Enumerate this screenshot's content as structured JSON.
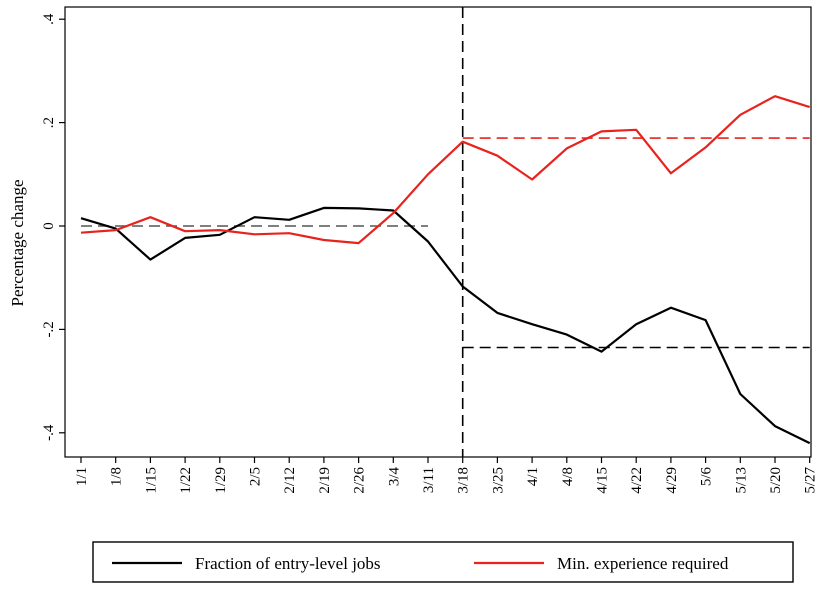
{
  "chart_data": {
    "type": "line",
    "title": "",
    "xlabel": "",
    "ylabel": "Percentage change",
    "ylim": [
      -0.43,
      0.43
    ],
    "yticks": [
      {
        "value": 0.4,
        "label": ".4"
      },
      {
        "value": 0.2,
        "label": ".2"
      },
      {
        "value": 0,
        "label": "0"
      },
      {
        "value": -0.2,
        "label": "-.2"
      },
      {
        "value": -0.4,
        "label": "-.4"
      }
    ],
    "categories": [
      "1/1",
      "1/8",
      "1/15",
      "1/22",
      "1/29",
      "2/5",
      "2/12",
      "2/19",
      "2/26",
      "3/4",
      "3/11",
      "3/18",
      "3/25",
      "4/1",
      "4/8",
      "4/15",
      "4/22",
      "4/29",
      "5/6",
      "5/13",
      "5/20",
      "5/27"
    ],
    "series": [
      {
        "name": "Fraction of entry-level jobs",
        "color": "#000000",
        "values": [
          0.015,
          -0.005,
          -0.065,
          -0.023,
          -0.017,
          0.017,
          0.012,
          0.035,
          0.034,
          0.03,
          -0.03,
          -0.117,
          -0.168,
          -0.19,
          -0.21,
          -0.243,
          -0.19,
          -0.158,
          -0.182,
          -0.325,
          -0.387,
          -0.42
        ]
      },
      {
        "name": "Min. experience required",
        "color": "#e8231e",
        "values": [
          -0.013,
          -0.008,
          0.017,
          -0.01,
          -0.008,
          -0.016,
          -0.014,
          -0.027,
          -0.033,
          0.025,
          0.1,
          0.163,
          0.136,
          0.09,
          0.15,
          0.183,
          0.186,
          0.102,
          0.152,
          0.215,
          0.251,
          0.23
        ]
      }
    ],
    "reference_lines": [
      {
        "kind": "horizontal",
        "value": 0,
        "from": "1/1",
        "to": "3/11",
        "color": "#555555",
        "style": "dashed"
      },
      {
        "kind": "horizontal",
        "value": 0.17,
        "from": "3/18",
        "to": "5/27",
        "color": "#e8231e",
        "style": "dashed"
      },
      {
        "kind": "horizontal",
        "value": -0.235,
        "from": "3/18",
        "to": "5/27",
        "color": "#000000",
        "style": "dashed"
      },
      {
        "kind": "vertical",
        "at": "3/18",
        "color": "#000000",
        "style": "dashed"
      }
    ],
    "legend": {
      "position": "bottom",
      "entries": [
        "Fraction of entry-level jobs",
        "Min. experience required"
      ]
    }
  }
}
